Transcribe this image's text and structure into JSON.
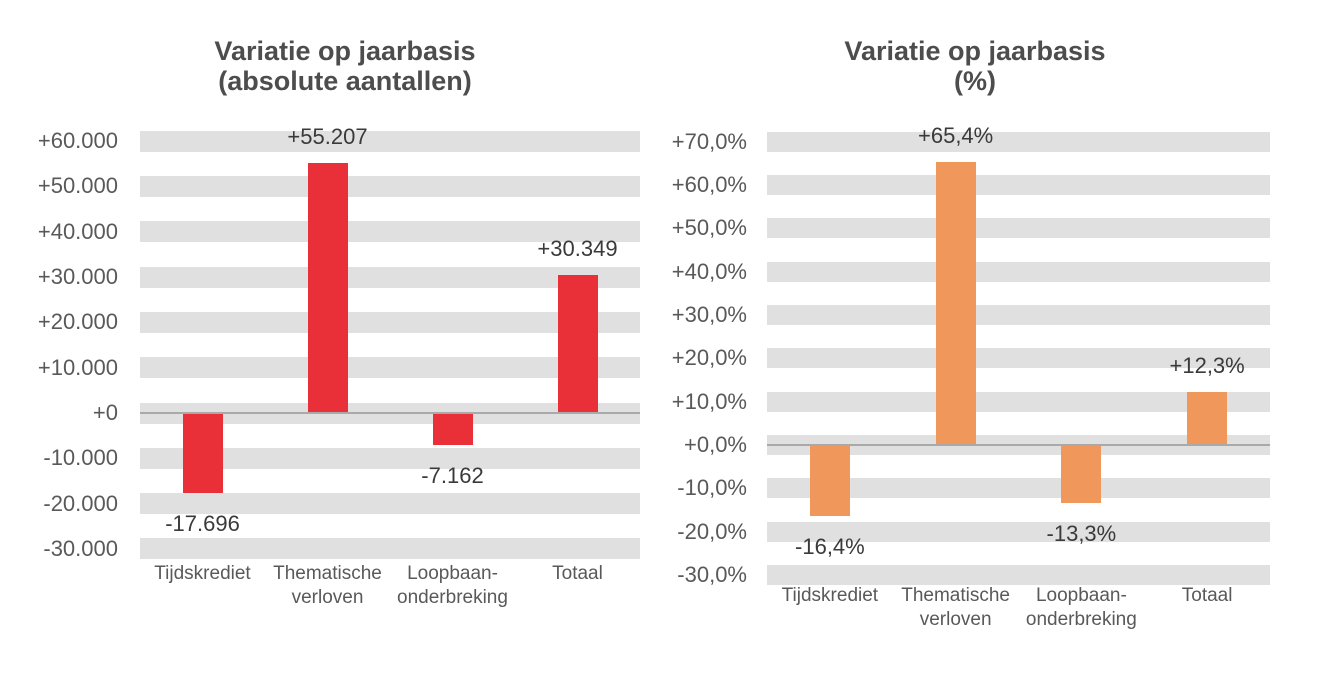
{
  "page": {
    "background": "#ffffff"
  },
  "chart_data": [
    {
      "type": "bar",
      "title": "Variatie op jaarbasis (absolute aantallen)",
      "title_lines": [
        "Variatie op jaarbasis",
        "(absolute aantallen)"
      ],
      "categories": [
        "Tijdskrediet",
        "Thematische verloven",
        "Loopbaan-onderbreking",
        "Totaal"
      ],
      "category_labels": [
        "Tijdskrediet",
        "Thematische\nverloven",
        "Loopbaan-\nonderbreking",
        "Totaal"
      ],
      "values": [
        -17696,
        55207,
        -7162,
        30349
      ],
      "data_labels": [
        "-17.696",
        "+55.207",
        "-7.162",
        "+30.349"
      ],
      "ylim": [
        -30000,
        60000
      ],
      "ytick_step": 10000,
      "ytick_labels": [
        "+60.000",
        "+50.000",
        "+40.000",
        "+30.000",
        "+20.000",
        "+10.000",
        "+0",
        "-10.000",
        "-20.000",
        "-30.000"
      ],
      "bar_color": "#e93039",
      "grid_band_color": "#e0e0e0",
      "axis_line_color": "#a9a9a9",
      "legend": "none",
      "gridlines": "striped horizontal bands centered on ticks"
    },
    {
      "type": "bar",
      "title": "Variatie op jaarbasis (%)",
      "title_lines": [
        "Variatie op jaarbasis",
        "(%)"
      ],
      "categories": [
        "Tijdskrediet",
        "Thematische verloven",
        "Loopbaan-onderbreking",
        "Totaal"
      ],
      "category_labels": [
        "Tijdskrediet",
        "Thematische\nverloven",
        "Loopbaan-\nonderbreking",
        "Totaal"
      ],
      "values": [
        -16.4,
        65.4,
        -13.3,
        12.3
      ],
      "data_labels": [
        "-16,4%",
        "+65,4%",
        "-13,3%",
        "+12,3%"
      ],
      "ylim": [
        -30,
        70
      ],
      "ytick_step": 10,
      "ytick_labels": [
        "+70,0%",
        "+60,0%",
        "+50,0%",
        "+40,0%",
        "+30,0%",
        "+20,0%",
        "+10,0%",
        "+0,0%",
        "-10,0%",
        "-20,0%",
        "-30,0%"
      ],
      "bar_color": "#f0985c",
      "grid_band_color": "#e0e0e0",
      "axis_line_color": "#a9a9a9",
      "legend": "none",
      "gridlines": "striped horizontal bands centered on ticks"
    }
  ]
}
